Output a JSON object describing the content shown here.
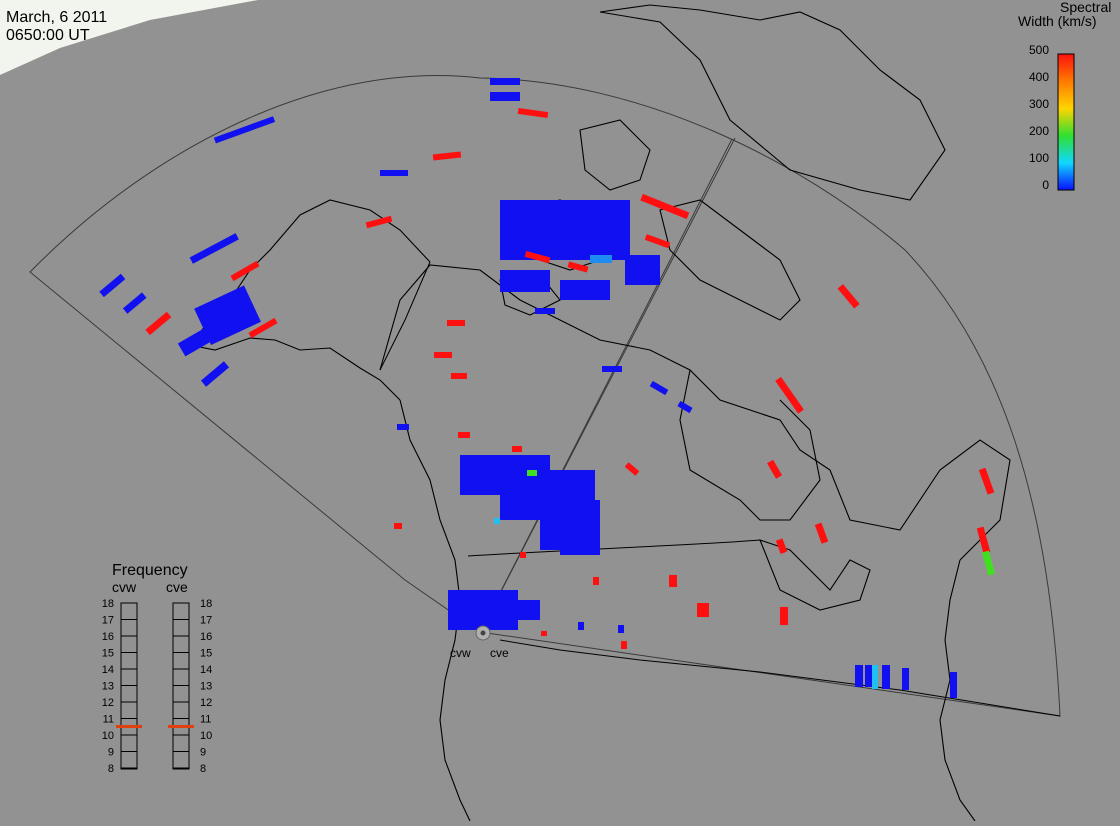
{
  "header": {
    "date": "March, 6 2011",
    "time": "0650:00 UT"
  },
  "colorbar": {
    "title_line1": "Spectral",
    "title_line2": "Width (km/s)",
    "ticks": [
      "500",
      "400",
      "300",
      "200",
      "100",
      "0"
    ]
  },
  "frequency_panel": {
    "title": "Frequency",
    "radars": [
      {
        "name": "cvw",
        "selected": "11"
      },
      {
        "name": "cve",
        "selected": "11"
      }
    ],
    "ticks": [
      "18",
      "17",
      "16",
      "15",
      "14",
      "13",
      "12",
      "11",
      "10",
      "9",
      "8"
    ]
  },
  "radar_sites": [
    {
      "name": "cvw"
    },
    {
      "name": "cve"
    }
  ],
  "colors": {
    "background": "#929292",
    "map_lines": "#000000",
    "fov_outline": "#3a3a3a",
    "low_width": "#1010f0",
    "high_width": "#ff1010",
    "mid_cyan": "#20c0f0",
    "mid_green": "#40e020",
    "frequency_marker": "#e04010"
  }
}
